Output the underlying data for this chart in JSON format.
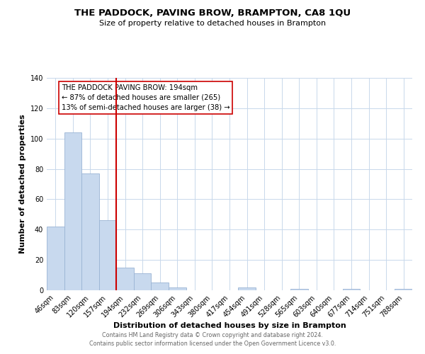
{
  "title": "THE PADDOCK, PAVING BROW, BRAMPTON, CA8 1QU",
  "subtitle": "Size of property relative to detached houses in Brampton",
  "xlabel": "Distribution of detached houses by size in Brampton",
  "ylabel": "Number of detached properties",
  "bar_labels": [
    "46sqm",
    "83sqm",
    "120sqm",
    "157sqm",
    "194sqm",
    "232sqm",
    "269sqm",
    "306sqm",
    "343sqm",
    "380sqm",
    "417sqm",
    "454sqm",
    "491sqm",
    "528sqm",
    "565sqm",
    "603sqm",
    "640sqm",
    "677sqm",
    "714sqm",
    "751sqm",
    "788sqm"
  ],
  "bar_values": [
    42,
    104,
    77,
    46,
    15,
    11,
    5,
    2,
    0,
    0,
    0,
    2,
    0,
    0,
    1,
    0,
    0,
    1,
    0,
    0,
    1
  ],
  "bar_color": "#c8d9ee",
  "bar_edge_color": "#9ab4d4",
  "vline_color": "#cc0000",
  "annotation_title": "THE PADDOCK PAVING BROW: 194sqm",
  "annotation_line1": "← 87% of detached houses are smaller (265)",
  "annotation_line2": "13% of semi-detached houses are larger (38) →",
  "annotation_box_color": "#ffffff",
  "annotation_box_edge": "#cc0000",
  "ylim": [
    0,
    140
  ],
  "yticks": [
    0,
    20,
    40,
    60,
    80,
    100,
    120,
    140
  ],
  "footer1": "Contains HM Land Registry data © Crown copyright and database right 2024.",
  "footer2": "Contains public sector information licensed under the Open Government Licence v3.0.",
  "background_color": "#ffffff",
  "grid_color": "#c8d8eb",
  "title_fontsize": 9.5,
  "subtitle_fontsize": 8,
  "axis_label_fontsize": 8,
  "tick_fontsize": 7,
  "annotation_fontsize": 7.2,
  "footer_fontsize": 5.8,
  "footer_color": "#666666"
}
